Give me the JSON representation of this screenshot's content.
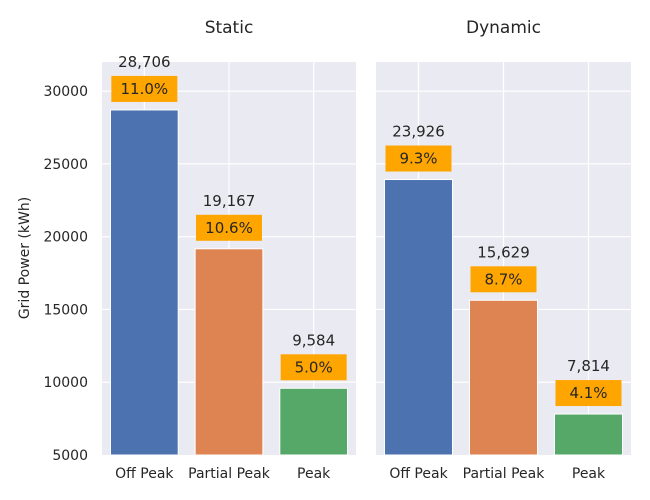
{
  "chart_data": {
    "type": "bar",
    "ylabel": "Grid Power (kWh)",
    "ylim": [
      5000,
      32000
    ],
    "yticks": [
      5000,
      10000,
      15000,
      20000,
      25000,
      30000
    ],
    "grid": true,
    "colors": [
      "#4c72b0",
      "#dd8452",
      "#55a868"
    ],
    "badge_color": "#ffa500",
    "panels": [
      {
        "title": "Static",
        "categories": [
          "Off Peak",
          "Partial Peak",
          "Peak"
        ],
        "values": [
          28706,
          19167,
          9584
        ],
        "value_labels": [
          "28,706",
          "19,167",
          "9,584"
        ],
        "percent_labels": [
          "11.0%",
          "10.6%",
          "5.0%"
        ]
      },
      {
        "title": "Dynamic",
        "categories": [
          "Off Peak",
          "Partial Peak",
          "Peak"
        ],
        "values": [
          23926,
          15629,
          7814
        ],
        "value_labels": [
          "23,926",
          "15,629",
          "7,814"
        ],
        "percent_labels": [
          "9.3%",
          "8.7%",
          "4.1%"
        ]
      }
    ]
  }
}
